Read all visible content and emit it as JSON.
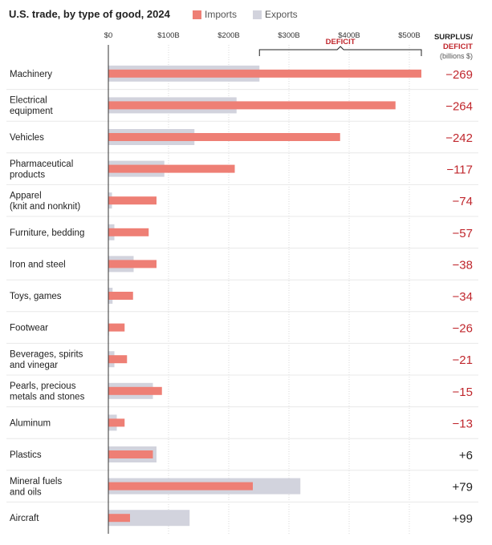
{
  "chart_data": {
    "type": "bar",
    "orientation": "horizontal",
    "title": "U.S. trade, by type of good, 2024",
    "categories": [
      "Machinery",
      "Electrical\nequipment",
      "Vehicles",
      "Pharmaceutical\nproducts",
      "Apparel\n(knit and nonknit)",
      "Furniture, bedding",
      "Iron and steel",
      "Toys, games",
      "Footwear",
      "Beverages, spirits\nand vinegar",
      "Pearls, precious\nmetals and stones",
      "Aluminum",
      "Plastics",
      "Mineral fuels\nand oils",
      "Aircraft"
    ],
    "series": [
      {
        "name": "Imports",
        "color": "#ee7f75",
        "values": [
          520,
          477,
          385,
          210,
          80,
          67,
          80,
          41,
          27,
          31,
          89,
          27,
          74,
          240,
          36
        ]
      },
      {
        "name": "Exports",
        "color": "#d2d3dd",
        "values": [
          251,
          213,
          143,
          93,
          6,
          10,
          42,
          7,
          1,
          10,
          74,
          14,
          80,
          319,
          135
        ]
      }
    ],
    "surplus_deficit": [
      "−269",
      "−264",
      "−242",
      "−117",
      "−74",
      "−57",
      "−38",
      "−34",
      "−26",
      "−21",
      "−15",
      "−13",
      "+6",
      "+79",
      "+99"
    ],
    "xticks": [
      "$0",
      "$100B",
      "$200B",
      "$300B",
      "$400B",
      "$500B"
    ],
    "xtick_values": [
      0,
      100,
      200,
      300,
      400,
      500
    ],
    "xlim": [
      0,
      500
    ],
    "column_header": {
      "line1": "SURPLUS/",
      "line2": "DEFICIT",
      "line3": "(billions $)"
    },
    "annotation": "DEFICIT",
    "legend_position": "top",
    "grid": true
  },
  "colors": {
    "imports": "#ee7f75",
    "exports": "#d2d3dd",
    "deficit": "#c0272d",
    "surplus": "#222222",
    "grid": "#dadada",
    "separator": "#e8e8e8"
  }
}
